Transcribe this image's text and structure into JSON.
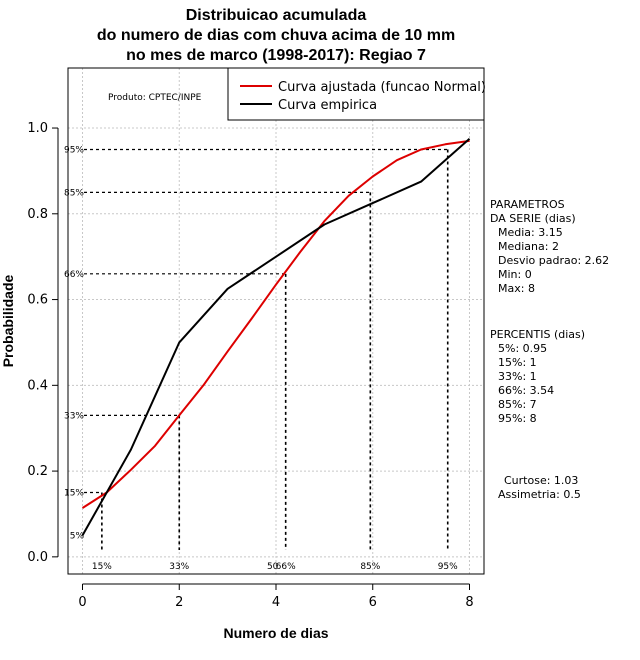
{
  "chart_data": {
    "type": "line",
    "title_lines": [
      "Distribuicao acumulada",
      "do numero de dias com chuva acima de 10 mm",
      "no mes de marco (1998-2017): Regiao 7"
    ],
    "xlabel": "Numero de dias",
    "ylabel": "Probabilidade",
    "xlim": [
      -0.3,
      8.3
    ],
    "ylim": [
      -0.04,
      1.14
    ],
    "x_ticks": [
      0,
      2,
      4,
      6,
      8
    ],
    "y_ticks": [
      0.0,
      0.2,
      0.4,
      0.6,
      0.8,
      1.0
    ],
    "x_tick_labels": [
      "0",
      "2",
      "4",
      "6",
      "8"
    ],
    "y_tick_labels": [
      "0.0",
      "0.2",
      "0.4",
      "0.6",
      "0.8",
      "1.0"
    ],
    "grid": true,
    "credit": "Produto: CPTEC/INPE",
    "legend_position": "top-right",
    "series": [
      {
        "name": "Curva ajustada (funcao Normal)",
        "color": "#dd0000",
        "x": [
          0,
          0.5,
          1,
          1.5,
          2,
          2.5,
          3,
          3.5,
          4,
          4.5,
          5,
          5.5,
          6,
          6.5,
          7,
          7.5,
          8
        ],
        "y": [
          0.114,
          0.15,
          0.203,
          0.259,
          0.33,
          0.4,
          0.479,
          0.556,
          0.635,
          0.711,
          0.783,
          0.842,
          0.887,
          0.925,
          0.95,
          0.962,
          0.97
        ]
      },
      {
        "name": "Curva empirica",
        "color": "#000000",
        "x": [
          0,
          1,
          2,
          3,
          4,
          5,
          6,
          7,
          8
        ],
        "y": [
          0.05,
          0.25,
          0.5,
          0.625,
          0.7,
          0.775,
          0.825,
          0.875,
          0.975
        ]
      }
    ],
    "percentile_markers": [
      {
        "label_y": "5%",
        "label_x": "",
        "prob": 0.05,
        "x": null
      },
      {
        "label_y": "15%",
        "label_x": "15%",
        "prob": 0.15,
        "x": 0.4
      },
      {
        "label_y": "33%",
        "label_x": "33%",
        "prob": 0.33,
        "x": 2.0
      },
      {
        "label_y": "66%",
        "label_x": "66%",
        "prob": 0.66,
        "x": 4.2
      },
      {
        "label_y": "85%",
        "label_x": "85%",
        "prob": 0.85,
        "x": 5.95
      },
      {
        "label_y": "95%",
        "label_x": "95%",
        "prob": 0.95,
        "x": 7.55
      }
    ],
    "x_marker_extra_label": "50",
    "x_marker_extra_at": 4.05,
    "side_panel": {
      "params_header_1": "PARAMETROS",
      "params_header_2": "DA SERIE (dias)",
      "params": [
        "Media: 3.15",
        "Mediana: 2",
        "Desvio padrao: 2.62",
        "Min: 0",
        "Max: 8"
      ],
      "percentis_header": "PERCENTIS (dias)",
      "percentis": [
        "5%: 0.95",
        "15%: 1",
        "33%: 1",
        "66%: 3.54",
        "85%: 7",
        "95%: 8"
      ],
      "stats": [
        "Curtose: 1.03",
        "Assimetria: 0.5"
      ]
    }
  }
}
